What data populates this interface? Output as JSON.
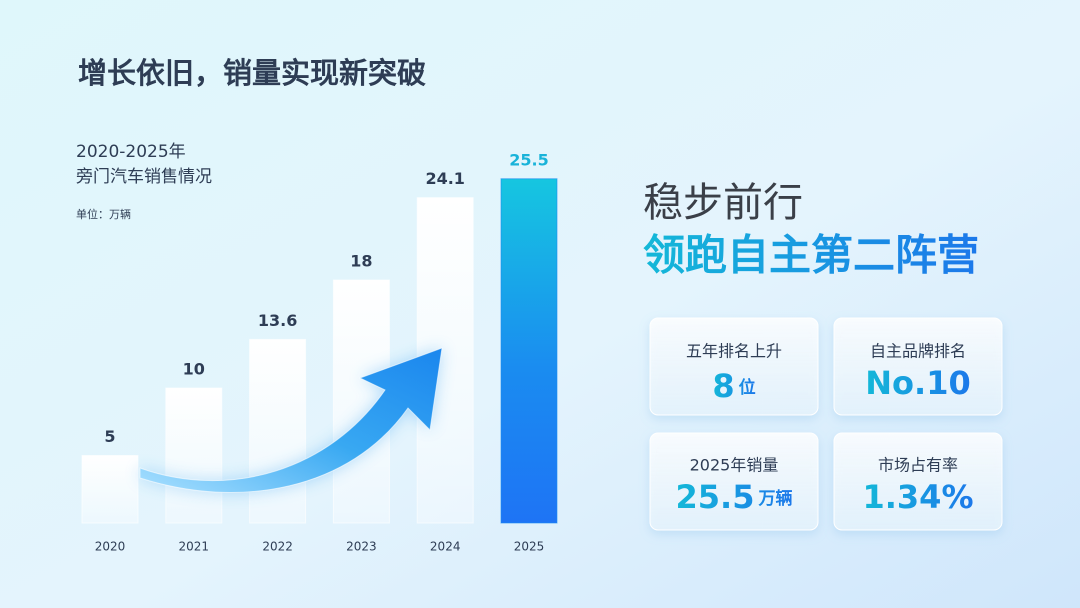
{
  "title": "增长依旧，销量实现新突破",
  "chart_data": {
    "type": "bar",
    "title": "2020-2025年",
    "subtitle": "旁门汽车销售情况",
    "unit_label": "单位：万辆",
    "categories": [
      "2020",
      "2021",
      "2022",
      "2023",
      "2024",
      "2025"
    ],
    "values": [
      5,
      10,
      13.6,
      18,
      24.1,
      25.5
    ],
    "color": "#ffffff",
    "highlight_color": "#1a8cf0"
  },
  "headline": {
    "line1": "稳步前行",
    "line2": "领跑自主第二阵营"
  },
  "cards": [
    {
      "label": "五年排名上升",
      "value": "8",
      "unit": "位"
    },
    {
      "label": "自主品牌排名",
      "value": "No.10"
    },
    {
      "label": "2025年销量",
      "value": "25.5",
      "unit": "万辆"
    },
    {
      "label": "市场占有率",
      "value": "1.34%"
    }
  ]
}
